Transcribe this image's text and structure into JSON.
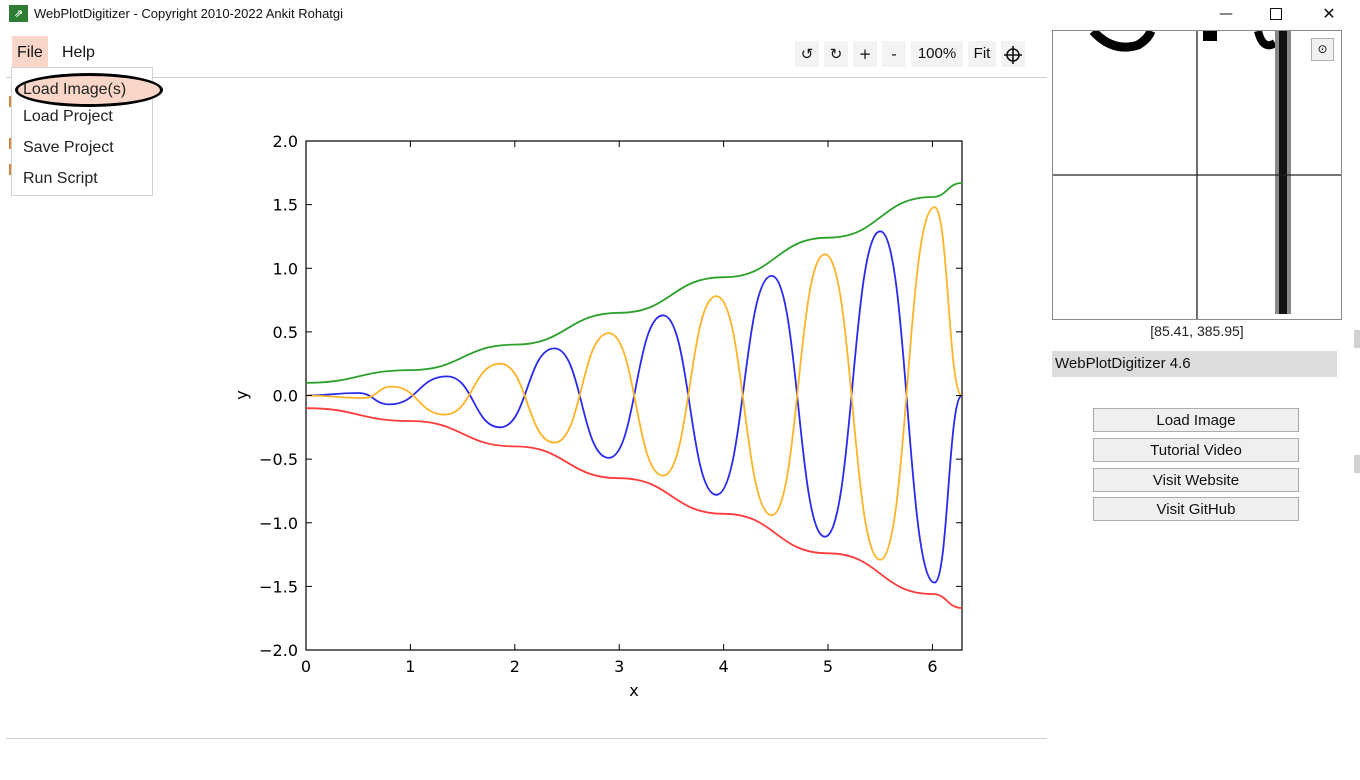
{
  "window": {
    "title": "WebPlotDigitizer - Copyright 2010-2022 Ankit Rohatgi",
    "icon": "app-icon",
    "minimize_label": "—",
    "close_label": "✕"
  },
  "menu": {
    "file_label": "File",
    "help_label": "Help",
    "file_items": [
      "Load Image(s)",
      "Load Project",
      "Save Project",
      "Run Script"
    ]
  },
  "toolbar": {
    "rotate_left": "↺",
    "rotate_right": "↻",
    "zoom_in": "+",
    "zoom_out": "-",
    "zoom_level": "100%",
    "fit_label": "Fit",
    "crosshair_icon": "crosshair-icon"
  },
  "sidebar": {
    "cursor_coords": "[85.41, 385.95]",
    "version": "WebPlotDigitizer 4.6",
    "buttons": [
      "Load Image",
      "Tutorial Video",
      "Visit Website",
      "Visit GitHub"
    ],
    "settings_icon": "gear-icon"
  },
  "colors": {
    "menu_highlight": "#f9d6c8",
    "green_series": "#2ca02c",
    "red_series": "#ff3b3b",
    "blue_series": "#2a2aee",
    "orange_series": "#ffb327"
  },
  "chart_data": {
    "type": "line",
    "xlabel": "x",
    "ylabel": "y",
    "xlim": [
      0,
      6.2832
    ],
    "ylim": [
      -2.0,
      2.0
    ],
    "xticks": [
      "0",
      "1",
      "2",
      "3",
      "4",
      "5",
      "6"
    ],
    "yticks": [
      "2.0",
      "1.5",
      "1.0",
      "0.5",
      "0.0",
      "−0.5",
      "−1.0",
      "−1.5",
      "−2.0"
    ],
    "grid": false,
    "series": [
      {
        "color": "#2ca02c",
        "x": [
          0,
          1,
          2,
          3,
          4,
          5,
          6,
          6.2832
        ],
        "y": [
          0.1,
          0.2,
          0.4,
          0.65,
          0.93,
          1.24,
          1.56,
          1.67
        ]
      },
      {
        "color": "#ff3b3b",
        "x": [
          0,
          1,
          2,
          3,
          4,
          5,
          6,
          6.2832
        ],
        "y": [
          -0.1,
          -0.2,
          -0.4,
          -0.65,
          -0.93,
          -1.24,
          -1.56,
          -1.67
        ]
      },
      {
        "color": "#2a2aee",
        "x": [
          0,
          0.5,
          0.8,
          1.35,
          1.86,
          2.38,
          2.9,
          3.42,
          3.93,
          4.46,
          4.97,
          5.5,
          6.02,
          6.2832
        ],
        "y": [
          0,
          0.02,
          -0.07,
          0.15,
          -0.25,
          0.37,
          -0.49,
          0.63,
          -0.78,
          0.94,
          -1.11,
          1.29,
          -1.47,
          0
        ]
      },
      {
        "color": "#ffb327",
        "x": [
          0,
          0.55,
          0.82,
          1.33,
          1.86,
          2.38,
          2.9,
          3.42,
          3.93,
          4.46,
          4.97,
          5.5,
          6.02,
          6.2832
        ],
        "y": [
          0,
          -0.02,
          0.07,
          -0.15,
          0.25,
          -0.37,
          0.49,
          -0.63,
          0.78,
          -0.94,
          1.11,
          -1.29,
          1.48,
          0
        ]
      }
    ]
  }
}
